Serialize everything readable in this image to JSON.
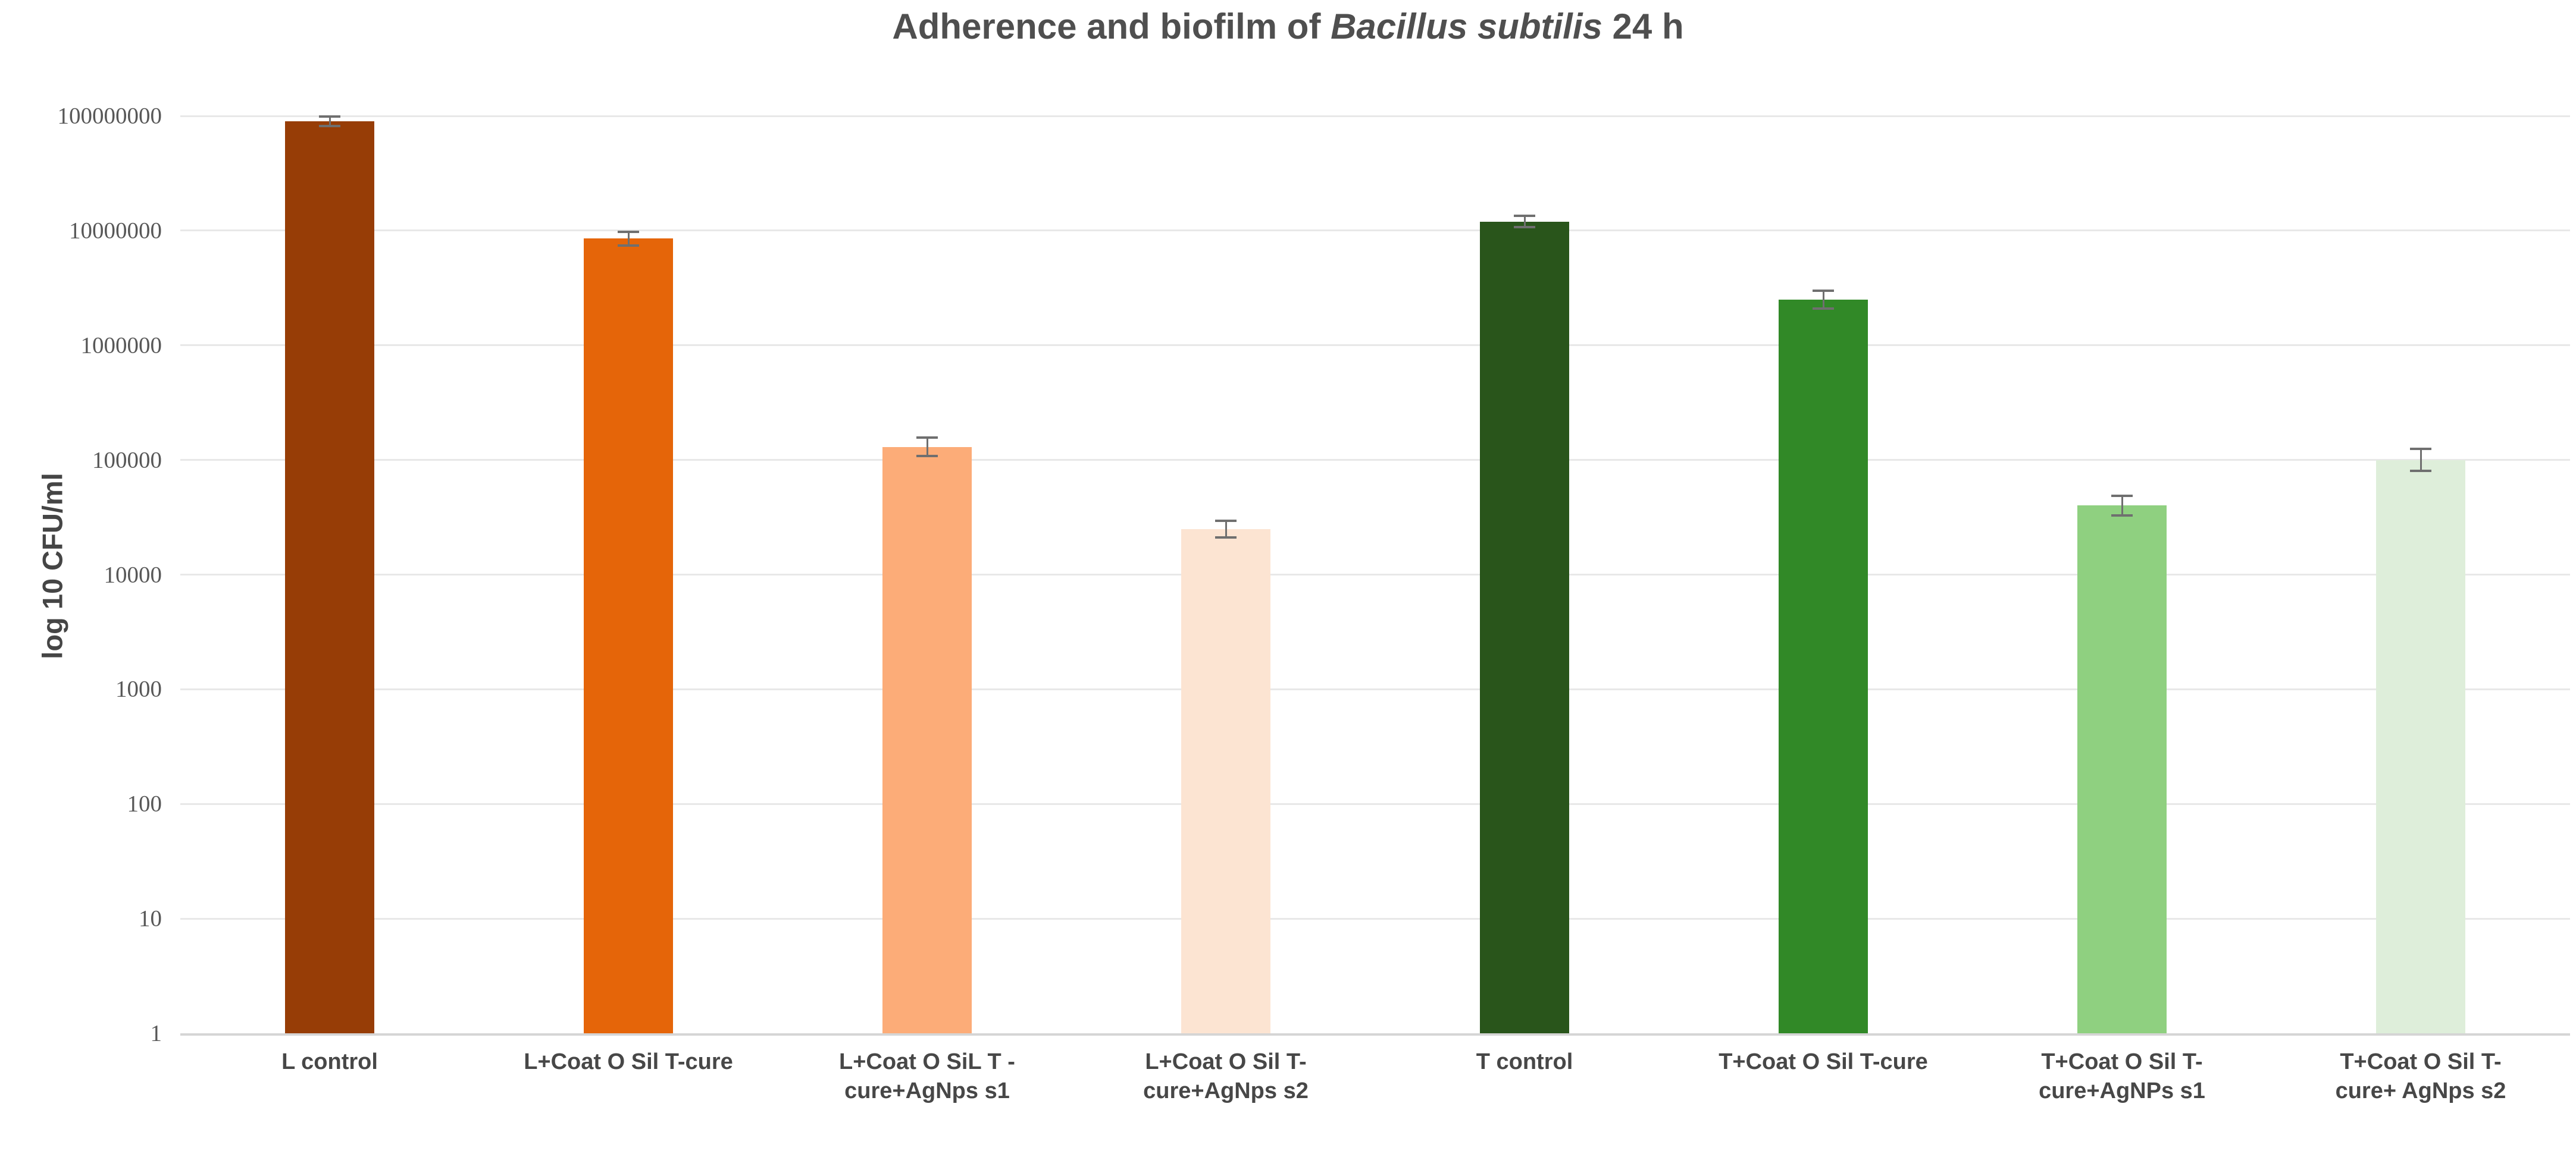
{
  "title": {
    "prefix": "Adherence and biofilm of ",
    "italic": "Bacillus subtilis",
    "suffix": " 24 h"
  },
  "chart_data": {
    "type": "bar",
    "title": "Adherence and biofilm of Bacillus subtilis 24 h",
    "xlabel": "",
    "ylabel": "log 10 CFU/ml",
    "y_scale": "log10",
    "ylim": [
      1,
      100000000
    ],
    "y_ticks": [
      1,
      10,
      100,
      1000,
      10000,
      100000,
      1000000,
      10000000,
      100000000
    ],
    "grid": true,
    "legend": false,
    "categories": [
      "L control",
      "L+Coat O Sil T-cure",
      "L+Coat O SiL T -\ncure+AgNps s1",
      "L+Coat O Sil T-\ncure+AgNps s2",
      "T control",
      "T+Coat O Sil T-cure",
      "T+Coat O Sil T-\ncure+AgNPs s1",
      "T+Coat O Sil T-\ncure+ AgNps s2"
    ],
    "values": [
      90000000,
      8500000,
      130000,
      25000,
      12000000,
      2500000,
      40000,
      100000
    ],
    "error_factors": [
      1.1,
      1.15,
      1.2,
      1.18,
      1.12,
      1.2,
      1.22,
      1.25
    ],
    "bar_colors": [
      "#973D06",
      "#E56509",
      "#FCAC78",
      "#FCE4D2",
      "#29551B",
      "#318927",
      "#8FD080",
      "#DEEEDA"
    ],
    "gridline_color": "#E8E8E8",
    "axis_line_color": "#D5D5D5",
    "error_bar_color": "#6F6F6F",
    "text_color": "#4F4F4F"
  }
}
